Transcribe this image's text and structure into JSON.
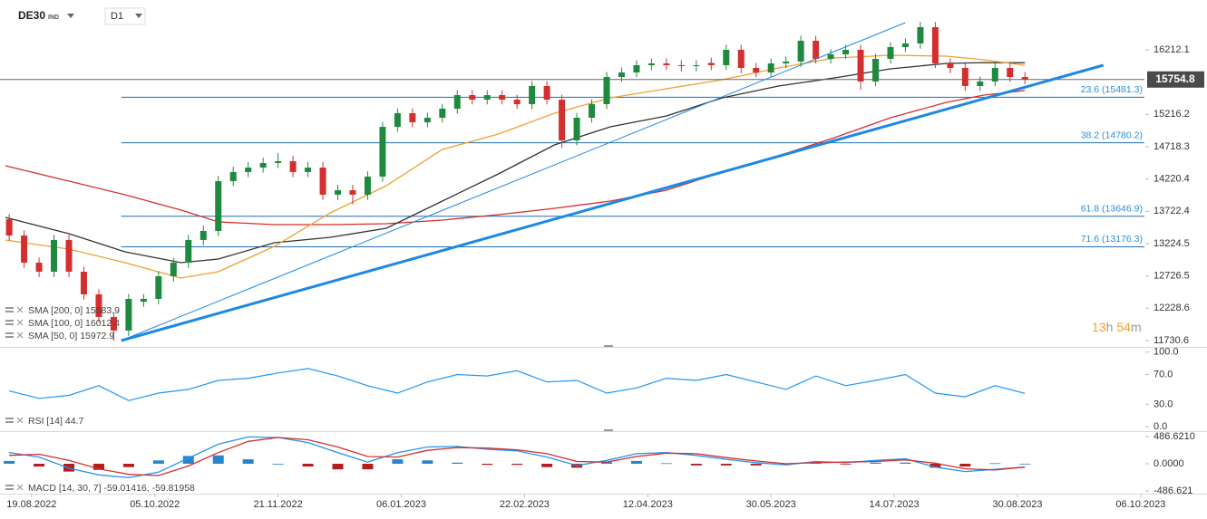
{
  "header": {
    "symbol": "DE30",
    "market": "IND",
    "timeframe": "D1"
  },
  "countdown": [
    "13",
    "h",
    "54",
    "m"
  ],
  "chart_data": [
    {
      "type": "candlestick",
      "xlim": [
        -7,
        298
      ],
      "xticks": [
        {
          "value": 0,
          "label": "19.08.2022"
        },
        {
          "value": 33,
          "label": "05.10.2022"
        },
        {
          "value": 66,
          "label": "21.11.2022"
        },
        {
          "value": 99,
          "label": "06.01.2023"
        },
        {
          "value": 132,
          "label": "22.02.2023"
        },
        {
          "value": 165,
          "label": "12.04.2023"
        },
        {
          "value": 198,
          "label": "30.05.2023"
        },
        {
          "value": 231,
          "label": "14.07.2023"
        },
        {
          "value": 264,
          "label": "30.08.2023"
        },
        {
          "value": 297,
          "label": "06.10.2023"
        }
      ],
      "ylim": [
        11633,
        16980
      ],
      "yticks": [
        16212.1,
        15216.2,
        14718.3,
        14220.4,
        13722.4,
        13224.5,
        12726.5,
        12228.6,
        11730.6
      ],
      "grid": false,
      "last_price": 15754.8,
      "candles": {
        "up_color": "#1f8a3f",
        "down_color": "#d32f2f",
        "x": [
          -6,
          -2,
          2,
          6,
          10,
          14,
          18,
          22,
          26,
          30,
          34,
          38,
          42,
          46,
          50,
          54,
          58,
          62,
          66,
          70,
          74,
          78,
          82,
          86,
          90,
          94,
          98,
          102,
          106,
          110,
          114,
          118,
          122,
          126,
          130,
          134,
          138,
          142,
          146,
          150,
          154,
          158,
          162,
          166,
          170,
          174,
          178,
          182,
          186,
          190,
          194,
          198,
          202,
          206,
          210,
          214,
          218,
          222,
          226,
          230,
          234,
          238,
          242,
          246,
          250,
          254,
          258,
          262,
          266
        ],
        "open": [
          13600,
          13350,
          12931,
          12792,
          13281,
          12792,
          12443,
          12094,
          11885,
          12330,
          12373,
          12722,
          12931,
          13281,
          13420,
          14188,
          14328,
          14397,
          14467,
          14495,
          14328,
          14397,
          13979,
          14048,
          13979,
          14258,
          15025,
          15235,
          15095,
          15165,
          15305,
          15514,
          15444,
          15514,
          15444,
          15375,
          15654,
          15444,
          14816,
          15165,
          15375,
          15793,
          15863,
          15975,
          16003,
          15975,
          15961,
          16010,
          15975,
          16212,
          15933,
          15863,
          16003,
          16031,
          16352,
          16073,
          16142,
          16212,
          15724,
          16073,
          16254,
          16310,
          16561,
          16003,
          15933,
          15654,
          15724,
          15933,
          15793
        ],
        "high": [
          13680,
          13430,
          13010,
          13360,
          13360,
          12870,
          12520,
          12170,
          12450,
          12450,
          12800,
          13010,
          13360,
          13500,
          14270,
          14410,
          14480,
          14550,
          14620,
          14580,
          14480,
          14480,
          14130,
          14130,
          14340,
          15100,
          15310,
          15310,
          15240,
          15380,
          15590,
          15590,
          15590,
          15590,
          15520,
          15730,
          15730,
          15520,
          15240,
          15450,
          15870,
          15940,
          16050,
          16080,
          16080,
          16050,
          16050,
          16090,
          16290,
          16290,
          16010,
          16080,
          16110,
          16430,
          16430,
          16220,
          16290,
          16290,
          16150,
          16330,
          16390,
          16640,
          16640,
          16080,
          16010,
          15800,
          16010,
          16010,
          15870
        ],
        "low": [
          13270,
          12850,
          12710,
          12710,
          12710,
          12360,
          12010,
          11730,
          11800,
          12250,
          12290,
          12640,
          12850,
          13200,
          13340,
          14110,
          14250,
          14320,
          14390,
          14250,
          14250,
          13900,
          13900,
          13830,
          13900,
          14180,
          14950,
          15020,
          15020,
          15090,
          15230,
          15370,
          15370,
          15370,
          15300,
          15300,
          15370,
          14700,
          14740,
          15090,
          15300,
          15720,
          15790,
          15900,
          15900,
          15880,
          15880,
          15900,
          15900,
          15850,
          15790,
          15790,
          15930,
          15950,
          16000,
          16000,
          16070,
          15600,
          15650,
          16000,
          16180,
          16230,
          15930,
          15850,
          15580,
          15580,
          15650,
          15720,
          15680
        ],
        "close": [
          13350,
          12931,
          12792,
          13281,
          12792,
          12443,
          12094,
          11885,
          12373,
          12373,
          12722,
          12931,
          13281,
          13420,
          14188,
          14328,
          14397,
          14467,
          14495,
          14328,
          14397,
          13979,
          14048,
          13979,
          14258,
          15025,
          15235,
          15095,
          15165,
          15305,
          15514,
          15444,
          15514,
          15444,
          15375,
          15654,
          15444,
          14816,
          15165,
          15375,
          15793,
          15863,
          15975,
          16003,
          15975,
          15961,
          15975,
          15975,
          16212,
          15933,
          15863,
          16003,
          16031,
          16352,
          16073,
          16142,
          16212,
          15724,
          16073,
          16254,
          16310,
          16561,
          16003,
          15933,
          15654,
          15724,
          15933,
          15793,
          15754.8
        ]
      },
      "series": [
        {
          "name": "SMA [200, 0] 15583.9",
          "color": "#d32f2f",
          "x": [
            -7,
            10,
            25,
            40,
            50,
            65,
            80,
            95,
            110,
            125,
            140,
            155,
            170,
            185,
            200,
            215,
            230,
            245,
            255,
            266
          ],
          "values": [
            14425,
            14188,
            13979,
            13742,
            13560,
            13518,
            13518,
            13532,
            13588,
            13671,
            13769,
            13880,
            14048,
            14328,
            14579,
            14858,
            15165,
            15402,
            15514,
            15584
          ]
        },
        {
          "name": "SMA [100, 0] 16012.4",
          "color": "#333333",
          "x": [
            -7,
            10,
            25,
            40,
            50,
            65,
            80,
            95,
            110,
            125,
            140,
            155,
            170,
            185,
            200,
            215,
            230,
            245,
            255,
            266
          ],
          "values": [
            13630,
            13378,
            13099,
            12931,
            12987,
            13239,
            13322,
            13462,
            13881,
            14300,
            14746,
            15025,
            15193,
            15472,
            15654,
            15779,
            15919,
            16003,
            16015,
            16012
          ]
        },
        {
          "name": "SMA [50, 0] 15972.9",
          "color": "#f0a030",
          "x": [
            -7,
            10,
            25,
            40,
            50,
            65,
            80,
            95,
            110,
            125,
            140,
            155,
            170,
            185,
            200,
            215,
            230,
            245,
            255,
            266
          ],
          "values": [
            13281,
            13141,
            12931,
            12694,
            12792,
            13183,
            13699,
            14118,
            14677,
            14914,
            15235,
            15472,
            15612,
            15751,
            15933,
            16086,
            16128,
            16114,
            16058,
            15972.9
          ]
        }
      ],
      "levels": [
        {
          "value": 15481.3,
          "label": "23.6 (15481.3)"
        },
        {
          "value": 14780.2,
          "label": "38.2 (14780.2)"
        },
        {
          "value": 13646.9,
          "label": "61.8 (13646.9)"
        },
        {
          "value": 13176.3,
          "label": "71.6 (13176.3)"
        }
      ],
      "levels_start": 24,
      "levels_color": "#1f6fb2",
      "trendlines": [
        {
          "x": [
            24,
            287
          ],
          "y": [
            11730.6,
            15975
          ],
          "color": "#1e88e5"
        },
        {
          "x": [
            24,
            234
          ],
          "y": [
            11730.6,
            16631
          ],
          "color": "#1e88e5"
        }
      ]
    },
    {
      "type": "line",
      "xlim": [
        -7,
        298
      ],
      "ylim": [
        -6,
        107
      ],
      "yticks": [
        {
          "value": 100,
          "label": "100.0"
        },
        {
          "value": 70,
          "label": "70.0"
        },
        {
          "value": 30,
          "label": "30.0"
        },
        {
          "value": 0,
          "label": "0.0"
        }
      ],
      "legend": "RSI [14] 44.7",
      "x": [
        -6,
        2,
        10,
        18,
        26,
        34,
        42,
        50,
        58,
        66,
        74,
        82,
        90,
        98,
        106,
        114,
        122,
        130,
        138,
        146,
        154,
        162,
        170,
        178,
        186,
        194,
        202,
        210,
        218,
        226,
        234,
        242,
        250,
        258,
        266
      ],
      "series": [
        {
          "color": "#2196f3",
          "values": [
            48,
            38,
            42,
            55,
            35,
            45,
            50,
            62,
            65,
            72,
            78,
            68,
            55,
            45,
            60,
            70,
            68,
            75,
            60,
            62,
            45,
            52,
            65,
            62,
            70,
            60,
            50,
            68,
            55,
            62,
            70,
            45,
            40,
            55,
            44.7
          ]
        }
      ]
    },
    {
      "type": "macd",
      "xlim": [
        -7,
        298
      ],
      "ylim": [
        -535,
        584
      ],
      "yticks": [
        {
          "value": 486.621,
          "label": "486.6210"
        },
        {
          "value": 0,
          "label": "0.0000"
        },
        {
          "value": -486.621,
          "label": "-486.621"
        }
      ],
      "legend": "MACD [14, 30, 7] -59.01416, -59.81958",
      "x": [
        -6,
        2,
        10,
        18,
        26,
        34,
        42,
        50,
        58,
        66,
        74,
        82,
        90,
        98,
        106,
        114,
        122,
        130,
        138,
        146,
        154,
        162,
        170,
        178,
        186,
        194,
        202,
        210,
        218,
        226,
        234,
        242,
        250,
        258,
        266
      ],
      "series": [
        {
          "color": "#2196f3",
          "values": [
            200,
            120,
            -80,
            -200,
            -250,
            -150,
            100,
            350,
            480,
            470,
            380,
            200,
            30,
            200,
            300,
            310,
            260,
            230,
            120,
            -30,
            60,
            180,
            200,
            150,
            80,
            20,
            -20,
            40,
            20,
            60,
            90,
            -60,
            -140,
            -100,
            -59.01416
          ]
        },
        {
          "color": "#d32f2f",
          "values": [
            150,
            170,
            60,
            -90,
            -190,
            -210,
            -40,
            200,
            400,
            470,
            430,
            300,
            130,
            120,
            240,
            290,
            280,
            250,
            180,
            40,
            30,
            130,
            190,
            180,
            110,
            50,
            0,
            20,
            30,
            40,
            70,
            10,
            -90,
            -110,
            -59.81958
          ]
        }
      ],
      "histogram": {
        "up_color": "#2a84c8",
        "down_color": "#b71c1c",
        "values": [
          50,
          -50,
          -140,
          -110,
          -60,
          60,
          140,
          150,
          80,
          0,
          -50,
          -100,
          -100,
          80,
          60,
          20,
          -20,
          -20,
          -60,
          -70,
          30,
          50,
          10,
          -30,
          -30,
          -30,
          -20,
          20,
          -10,
          20,
          20,
          -70,
          -50,
          10,
          0.80542
        ]
      }
    }
  ]
}
